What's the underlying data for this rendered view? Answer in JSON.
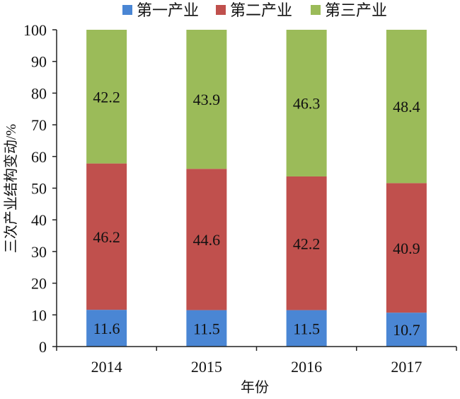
{
  "chart_data": {
    "type": "bar",
    "stacked": true,
    "categories": [
      "2014",
      "2015",
      "2016",
      "2017"
    ],
    "series": [
      {
        "name": "第一产业",
        "values": [
          11.6,
          11.5,
          11.5,
          10.7
        ],
        "color": "#4a86d4"
      },
      {
        "name": "第二产业",
        "values": [
          46.2,
          44.6,
          42.2,
          40.9
        ],
        "color": "#c0504d"
      },
      {
        "name": "第三产业",
        "values": [
          42.2,
          43.9,
          46.3,
          48.4
        ],
        "color": "#9bbb59"
      }
    ],
    "xlabel": "年份",
    "ylabel": "三次产业结构变动/%",
    "ylim": [
      0,
      100
    ],
    "yticks": [
      0,
      10,
      20,
      30,
      40,
      50,
      60,
      70,
      80,
      90,
      100
    ],
    "grid": false,
    "legend_position": "top"
  }
}
